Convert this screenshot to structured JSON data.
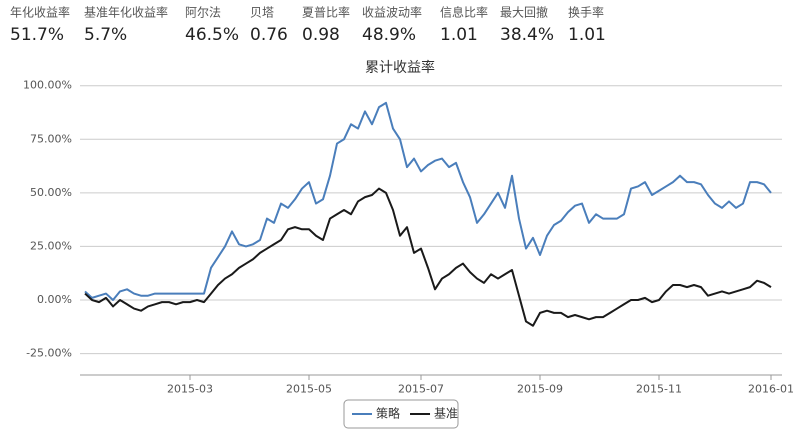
{
  "stats": [
    {
      "label": "年化收益率",
      "value": "51.7%"
    },
    {
      "label": "基准年化收益率",
      "value": "5.7%"
    },
    {
      "label": "阿尔法",
      "value": "46.5%"
    },
    {
      "label": "贝塔",
      "value": "0.76"
    },
    {
      "label": "夏普比率",
      "value": "0.98"
    },
    {
      "label": "收益波动率",
      "value": "48.9%"
    },
    {
      "label": "信息比率",
      "value": "1.01"
    },
    {
      "label": "最大回撤",
      "value": "38.4%"
    },
    {
      "label": "换手率",
      "value": "1.01"
    }
  ],
  "chart_data": {
    "type": "line",
    "title": "累计收益率",
    "categories": [
      null,
      null,
      null,
      null,
      null,
      null,
      null,
      null,
      null,
      null,
      null,
      null,
      null,
      null,
      null,
      "2015-03",
      null,
      null,
      null,
      null,
      null,
      null,
      null,
      null,
      null,
      null,
      null,
      null,
      null,
      null,
      null,
      null,
      "2015-05",
      null,
      null,
      null,
      null,
      null,
      null,
      null,
      null,
      null,
      null,
      null,
      null,
      null,
      null,
      null,
      "2015-07",
      null,
      null,
      null,
      null,
      null,
      null,
      null,
      null,
      null,
      null,
      null,
      null,
      null,
      null,
      null,
      null,
      "2015-09",
      null,
      null,
      null,
      null,
      null,
      null,
      null,
      null,
      null,
      null,
      null,
      null,
      null,
      null,
      null,
      null,
      "2015-11",
      null,
      null,
      null,
      null,
      null,
      null,
      null,
      null,
      null,
      null,
      null,
      null,
      null,
      null,
      null,
      "2016-01"
    ],
    "series": [
      {
        "name": "策略",
        "color": "#4a7ebb",
        "values": [
          4,
          1,
          2,
          3,
          0,
          4,
          5,
          3,
          2,
          2,
          3,
          3,
          3,
          3,
          3,
          3,
          3,
          3,
          15,
          20,
          25,
          32,
          26,
          25,
          26,
          28,
          38,
          36,
          45,
          43,
          47,
          52,
          55,
          45,
          47,
          58,
          73,
          75,
          82,
          80,
          88,
          82,
          90,
          92,
          80,
          75,
          62,
          66,
          60,
          63,
          65,
          66,
          62,
          64,
          55,
          48,
          36,
          40,
          45,
          50,
          43,
          58,
          38,
          24,
          29,
          21,
          30,
          35,
          37,
          41,
          44,
          45,
          36,
          40,
          38,
          38,
          38,
          40,
          52,
          53,
          55,
          49,
          51,
          53,
          55,
          58,
          55,
          55,
          54,
          49,
          45,
          43,
          46,
          43,
          45,
          55,
          55,
          54,
          50
        ]
      },
      {
        "name": "基准",
        "color": "#1a1a1a",
        "values": [
          3,
          0,
          -1,
          1,
          -3,
          0,
          -2,
          -4,
          -5,
          -3,
          -2,
          -1,
          -1,
          -2,
          -1,
          -1,
          0,
          -1,
          3,
          7,
          10,
          12,
          15,
          17,
          19,
          22,
          24,
          26,
          28,
          33,
          34,
          33,
          33,
          30,
          28,
          38,
          40,
          42,
          40,
          46,
          48,
          49,
          52,
          50,
          42,
          30,
          34,
          22,
          24,
          15,
          5,
          10,
          12,
          15,
          17,
          13,
          10,
          8,
          12,
          10,
          12,
          14,
          2,
          -10,
          -12,
          -6,
          -5,
          -6,
          -6,
          -8,
          -7,
          -8,
          -9,
          -8,
          -8,
          -6,
          -4,
          -2,
          0,
          0,
          1,
          -1,
          0,
          4,
          7,
          7,
          6,
          7,
          6,
          2,
          3,
          4,
          3,
          4,
          5,
          6,
          9,
          8,
          6
        ]
      }
    ],
    "ylim": [
      -35,
      105
    ],
    "yticks": [
      {
        "value": -25,
        "label": "-25.00%"
      },
      {
        "value": 0,
        "label": "0.00%"
      },
      {
        "value": 25,
        "label": "25.00%"
      },
      {
        "value": 50,
        "label": "50.00%"
      },
      {
        "value": 75,
        "label": "75.00%"
      },
      {
        "value": 100,
        "label": "100.00%"
      }
    ],
    "grid": true,
    "legend": "bottom"
  }
}
